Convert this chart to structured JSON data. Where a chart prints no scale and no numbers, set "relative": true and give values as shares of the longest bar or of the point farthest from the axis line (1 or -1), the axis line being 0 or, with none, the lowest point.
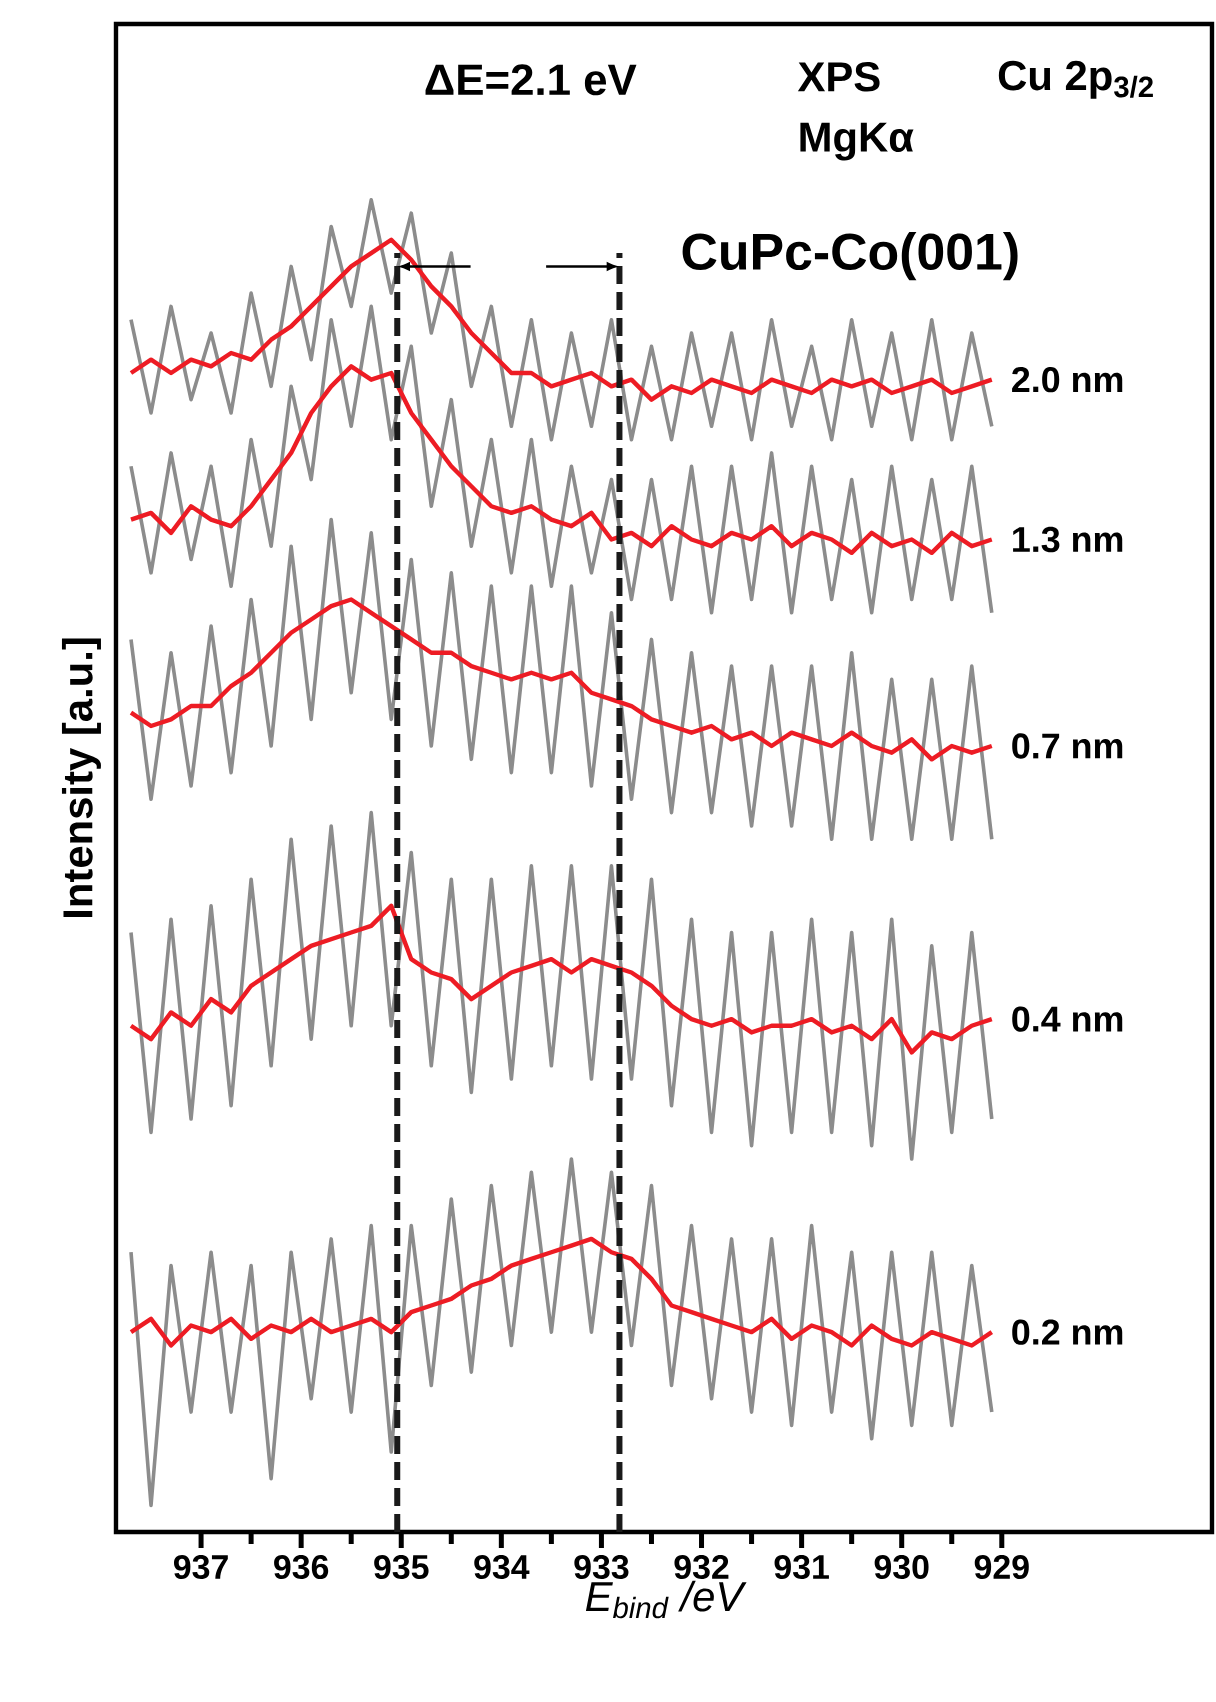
{
  "chart_data": {
    "type": "line",
    "relative": true,
    "xlabel": "E$_{bind}$ /eV",
    "ylabel": "Intensity [a.u.]",
    "annotations": [
      "ΔE=2.1 eV",
      "XPS",
      "MgKα",
      "Cu 2p$_{3/2}$",
      "CuPc-Co(001)"
    ],
    "xlim": [
      937.85,
      926.9
    ],
    "xticks": [
      937,
      936,
      935,
      934,
      933,
      932,
      931,
      930,
      929
    ],
    "ref_lines": [
      {
        "axis": "x",
        "value": 935.04,
        "color": "#1a1a1a",
        "line_style": "dashed"
      },
      {
        "axis": "x",
        "value": 932.82,
        "color": "#1a1a1a",
        "line_style": "dashed"
      }
    ],
    "x": [
      937.7,
      937.5,
      937.3,
      937.1,
      936.9,
      936.7,
      936.5,
      936.3,
      936.1,
      935.9,
      935.7,
      935.5,
      935.3,
      935.1,
      934.9,
      934.7,
      934.5,
      934.3,
      934.1,
      933.9,
      933.7,
      933.5,
      933.3,
      933.1,
      932.9,
      932.7,
      932.5,
      932.3,
      932.1,
      931.9,
      931.7,
      931.5,
      931.3,
      931.1,
      930.9,
      930.7,
      930.5,
      930.3,
      930.1,
      929.9,
      929.7,
      929.5,
      929.3,
      929.1
    ],
    "series": [
      {
        "color": "#8c8c8c",
        "values": [
          0.91,
          0.84,
          0.92,
          0.85,
          0.9,
          0.84,
          0.93,
          0.86,
          0.95,
          0.88,
          0.98,
          0.92,
          1.0,
          0.93,
          0.99,
          0.9,
          0.96,
          0.86,
          0.92,
          0.83,
          0.91,
          0.82,
          0.9,
          0.83,
          0.91,
          0.82,
          0.89,
          0.82,
          0.9,
          0.83,
          0.9,
          0.82,
          0.91,
          0.83,
          0.89,
          0.82,
          0.91,
          0.83,
          0.9,
          0.82,
          0.91,
          0.82,
          0.9,
          0.83
        ]
      },
      {
        "name": "2.0 nm",
        "color": "#ed1c24",
        "values": [
          0.87,
          0.88,
          0.87,
          0.88,
          0.875,
          0.885,
          0.88,
          0.895,
          0.905,
          0.92,
          0.935,
          0.95,
          0.96,
          0.97,
          0.955,
          0.935,
          0.92,
          0.9,
          0.885,
          0.87,
          0.87,
          0.86,
          0.865,
          0.87,
          0.86,
          0.865,
          0.85,
          0.86,
          0.855,
          0.865,
          0.86,
          0.855,
          0.865,
          0.86,
          0.855,
          0.865,
          0.86,
          0.865,
          0.855,
          0.86,
          0.865,
          0.855,
          0.86,
          0.865
        ]
      },
      {
        "color": "#8c8c8c",
        "values": [
          0.8,
          0.72,
          0.81,
          0.73,
          0.8,
          0.71,
          0.82,
          0.74,
          0.86,
          0.79,
          0.91,
          0.83,
          0.92,
          0.82,
          0.89,
          0.77,
          0.85,
          0.74,
          0.82,
          0.72,
          0.82,
          0.71,
          0.8,
          0.72,
          0.79,
          0.7,
          0.79,
          0.7,
          0.8,
          0.69,
          0.8,
          0.7,
          0.81,
          0.69,
          0.8,
          0.7,
          0.79,
          0.69,
          0.8,
          0.7,
          0.79,
          0.7,
          0.8,
          0.69
        ]
      },
      {
        "name": "1.3 nm",
        "color": "#ed1c24",
        "values": [
          0.76,
          0.765,
          0.75,
          0.77,
          0.76,
          0.755,
          0.77,
          0.79,
          0.81,
          0.84,
          0.86,
          0.875,
          0.865,
          0.87,
          0.84,
          0.82,
          0.8,
          0.785,
          0.77,
          0.765,
          0.77,
          0.76,
          0.755,
          0.765,
          0.745,
          0.75,
          0.74,
          0.755,
          0.745,
          0.74,
          0.75,
          0.745,
          0.755,
          0.74,
          0.75,
          0.745,
          0.735,
          0.75,
          0.74,
          0.745,
          0.735,
          0.75,
          0.74,
          0.745
        ]
      },
      {
        "color": "#8c8c8c",
        "values": [
          0.67,
          0.55,
          0.66,
          0.56,
          0.68,
          0.57,
          0.7,
          0.59,
          0.74,
          0.61,
          0.76,
          0.63,
          0.75,
          0.61,
          0.73,
          0.59,
          0.72,
          0.58,
          0.71,
          0.57,
          0.71,
          0.57,
          0.71,
          0.56,
          0.69,
          0.55,
          0.67,
          0.54,
          0.66,
          0.54,
          0.65,
          0.53,
          0.65,
          0.53,
          0.65,
          0.52,
          0.66,
          0.52,
          0.64,
          0.52,
          0.64,
          0.52,
          0.65,
          0.52
        ]
      },
      {
        "name": "0.7 nm",
        "color": "#ed1c24",
        "values": [
          0.615,
          0.605,
          0.61,
          0.62,
          0.62,
          0.635,
          0.645,
          0.66,
          0.675,
          0.685,
          0.695,
          0.7,
          0.69,
          0.68,
          0.67,
          0.66,
          0.66,
          0.65,
          0.645,
          0.64,
          0.645,
          0.64,
          0.645,
          0.63,
          0.625,
          0.62,
          0.61,
          0.605,
          0.6,
          0.605,
          0.595,
          0.6,
          0.59,
          0.6,
          0.595,
          0.59,
          0.6,
          0.59,
          0.585,
          0.595,
          0.58,
          0.59,
          0.585,
          0.59
        ]
      },
      {
        "color": "#8c8c8c",
        "values": [
          0.45,
          0.3,
          0.46,
          0.31,
          0.47,
          0.32,
          0.49,
          0.35,
          0.52,
          0.37,
          0.53,
          0.38,
          0.54,
          0.38,
          0.51,
          0.35,
          0.49,
          0.33,
          0.49,
          0.34,
          0.5,
          0.35,
          0.5,
          0.34,
          0.5,
          0.34,
          0.49,
          0.32,
          0.46,
          0.3,
          0.45,
          0.29,
          0.45,
          0.3,
          0.46,
          0.3,
          0.45,
          0.29,
          0.46,
          0.28,
          0.44,
          0.3,
          0.45,
          0.31
        ]
      },
      {
        "name": "0.4 nm",
        "color": "#ed1c24",
        "values": [
          0.38,
          0.37,
          0.39,
          0.38,
          0.4,
          0.39,
          0.41,
          0.42,
          0.43,
          0.44,
          0.445,
          0.45,
          0.455,
          0.47,
          0.43,
          0.42,
          0.415,
          0.4,
          0.41,
          0.42,
          0.425,
          0.43,
          0.42,
          0.43,
          0.425,
          0.42,
          0.41,
          0.395,
          0.385,
          0.38,
          0.385,
          0.375,
          0.38,
          0.38,
          0.385,
          0.375,
          0.38,
          0.37,
          0.385,
          0.36,
          0.375,
          0.37,
          0.38,
          0.385
        ]
      },
      {
        "color": "#8c8c8c",
        "values": [
          0.21,
          0.02,
          0.2,
          0.09,
          0.21,
          0.09,
          0.2,
          0.04,
          0.21,
          0.1,
          0.22,
          0.09,
          0.23,
          0.06,
          0.23,
          0.11,
          0.25,
          0.12,
          0.26,
          0.14,
          0.27,
          0.15,
          0.28,
          0.15,
          0.27,
          0.14,
          0.26,
          0.11,
          0.23,
          0.1,
          0.22,
          0.09,
          0.22,
          0.08,
          0.23,
          0.09,
          0.21,
          0.07,
          0.21,
          0.08,
          0.21,
          0.08,
          0.2,
          0.09
        ]
      },
      {
        "name": "0.2 nm",
        "color": "#ed1c24",
        "values": [
          0.15,
          0.16,
          0.14,
          0.155,
          0.15,
          0.16,
          0.145,
          0.155,
          0.15,
          0.16,
          0.15,
          0.155,
          0.16,
          0.15,
          0.165,
          0.17,
          0.175,
          0.185,
          0.19,
          0.2,
          0.205,
          0.21,
          0.215,
          0.22,
          0.21,
          0.205,
          0.19,
          0.17,
          0.165,
          0.16,
          0.155,
          0.15,
          0.16,
          0.145,
          0.155,
          0.15,
          0.14,
          0.155,
          0.145,
          0.14,
          0.15,
          0.145,
          0.14,
          0.15
        ]
      }
    ]
  }
}
